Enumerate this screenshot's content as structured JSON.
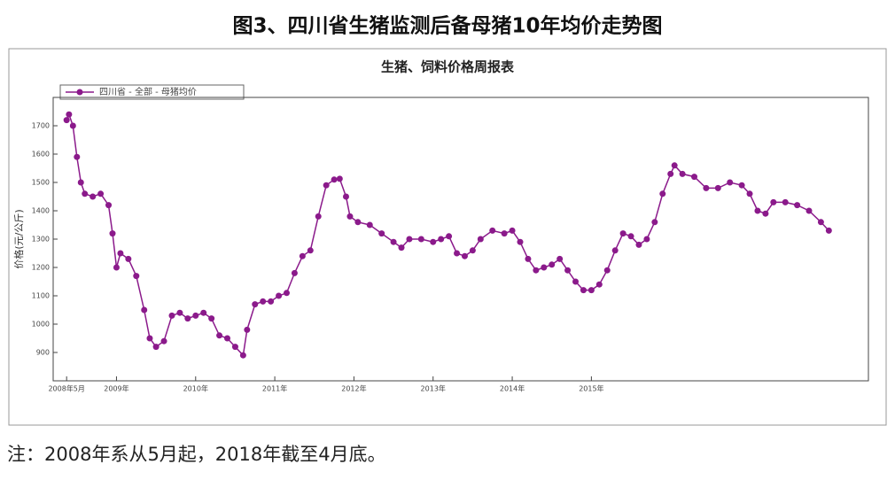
{
  "header": {
    "title": "图3、四川省生猪监测后备母猪10年均价走势图"
  },
  "chart_data": {
    "type": "line",
    "title": "生猪、饲料价格周报表",
    "y_label": "价格(元/公斤)",
    "series": [
      {
        "name": "四川省 - 全部 - 母猪均价",
        "color": "#8b1a8b",
        "x": [
          2008.37,
          2008.4,
          2008.45,
          2008.5,
          2008.55,
          2008.6,
          2008.7,
          2008.8,
          2008.9,
          2008.95,
          2009.0,
          2009.05,
          2009.15,
          2009.25,
          2009.35,
          2009.42,
          2009.5,
          2009.6,
          2009.7,
          2009.8,
          2009.9,
          2010.0,
          2010.1,
          2010.2,
          2010.3,
          2010.4,
          2010.5,
          2010.6,
          2010.65,
          2010.75,
          2010.85,
          2010.95,
          2011.05,
          2011.15,
          2011.25,
          2011.35,
          2011.45,
          2011.55,
          2011.65,
          2011.75,
          2011.82,
          2011.9,
          2011.95,
          2012.05,
          2012.2,
          2012.35,
          2012.5,
          2012.6,
          2012.7,
          2012.85,
          2013.0,
          2013.1,
          2013.2,
          2013.3,
          2013.4,
          2013.5,
          2013.6,
          2013.75,
          2013.9,
          2014.0,
          2014.1,
          2014.2,
          2014.3,
          2014.4,
          2014.5,
          2014.6,
          2014.7,
          2014.8,
          2014.9,
          2015.0,
          2015.1,
          2015.2,
          2015.3,
          2015.4,
          2015.5,
          2015.6,
          2015.7,
          2015.8,
          2015.9,
          2016.0,
          2016.05,
          2016.15,
          2016.3,
          2016.45,
          2016.6,
          2016.75,
          2016.9,
          2017.0,
          2017.1,
          2017.2,
          2017.3,
          2017.45,
          2017.6,
          2017.75,
          2017.9,
          2018.0
        ],
        "values": [
          1720,
          1740,
          1700,
          1590,
          1500,
          1460,
          1450,
          1460,
          1420,
          1320,
          1200,
          1250,
          1230,
          1170,
          1050,
          950,
          920,
          940,
          1030,
          1040,
          1020,
          1030,
          1040,
          1020,
          960,
          950,
          920,
          890,
          980,
          1070,
          1080,
          1080,
          1100,
          1110,
          1180,
          1240,
          1260,
          1380,
          1490,
          1510,
          1513,
          1450,
          1380,
          1360,
          1350,
          1320,
          1290,
          1270,
          1300,
          1300,
          1290,
          1300,
          1310,
          1250,
          1240,
          1260,
          1300,
          1330,
          1320,
          1330,
          1290,
          1230,
          1190,
          1200,
          1210,
          1230,
          1190,
          1150,
          1120,
          1120,
          1140,
          1190,
          1260,
          1320,
          1310,
          1280,
          1300,
          1360,
          1460,
          1530,
          1560,
          1530,
          1520,
          1480,
          1480,
          1500,
          1490,
          1460,
          1400,
          1390,
          1430,
          1430,
          1420,
          1400,
          1360,
          1330
        ]
      }
    ],
    "xlim": [
      2008.2,
      2018.5
    ],
    "xticks": [
      {
        "value": 2008.37,
        "label": "2008年5月"
      },
      {
        "value": 2009,
        "label": "2009年"
      },
      {
        "value": 2010,
        "label": "2010年"
      },
      {
        "value": 2011,
        "label": "2011年"
      },
      {
        "value": 2012,
        "label": "2012年"
      },
      {
        "value": 2013,
        "label": "2013年"
      },
      {
        "value": 2014,
        "label": "2014年"
      },
      {
        "value": 2015,
        "label": "2015年"
      }
    ],
    "ylim": [
      800,
      1800
    ],
    "yticks": [
      900,
      1000,
      1100,
      1200,
      1300,
      1400,
      1500,
      1600,
      1700
    ],
    "grid": false
  },
  "footnote": "注：2008年系从5月起，2018年截至4月底。"
}
